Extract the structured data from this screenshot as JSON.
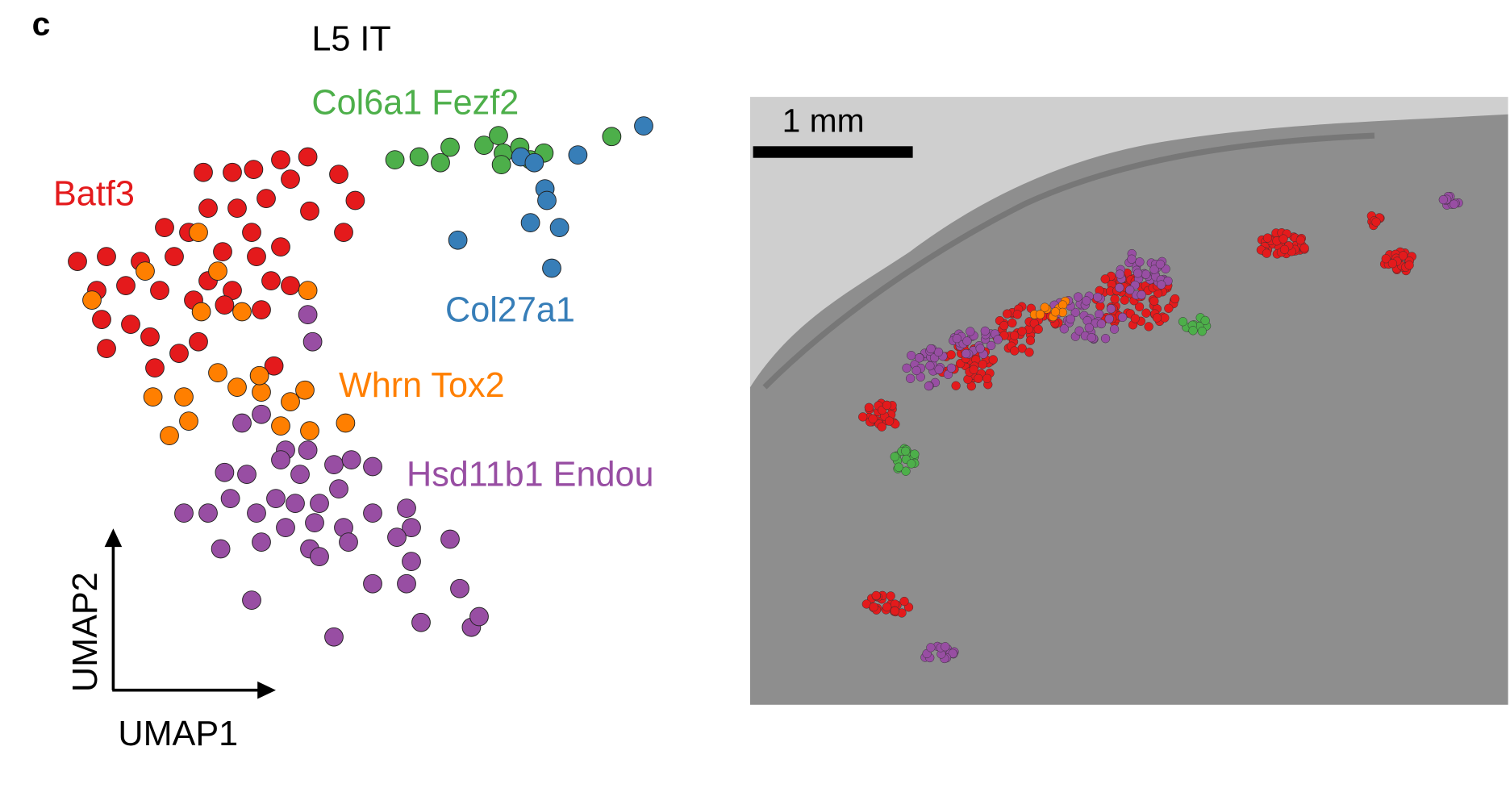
{
  "panel_label": "c",
  "chart_data": {
    "type": "scatter",
    "title": "L5 IT",
    "x_label": "UMAP1",
    "y_label": "UMAP2",
    "xlim": [
      0,
      62
    ],
    "ylim": [
      0,
      55
    ],
    "series": [
      {
        "name": "Batf3",
        "color": "#e41a1c",
        "x": [
          15.0,
          18.0,
          20.2,
          23.0,
          25.8,
          29.0,
          30.7,
          24.0,
          15.5,
          18.5,
          21.5,
          26.0,
          29.5,
          11.0,
          13.5,
          17.0,
          20.0,
          23.0,
          2.0,
          5.0,
          8.5,
          12.0,
          15.5,
          20.5,
          24.0,
          4.0,
          7.0,
          10.5,
          14.0,
          18.0,
          22.0,
          4.5,
          7.5,
          9.5,
          14.5,
          5.0,
          10.0,
          12.5,
          17.2,
          21.0,
          22.3
        ],
        "values": [
          49.2,
          49.2,
          49.5,
          50.5,
          50.8,
          49.0,
          46.3,
          48.5,
          45.5,
          45.5,
          46.5,
          45.2,
          43.0,
          43.5,
          43.0,
          41.0,
          43.0,
          41.5,
          40.0,
          40.5,
          40.0,
          40.5,
          38.0,
          40.5,
          37.5,
          37.0,
          37.5,
          37.0,
          36.0,
          37.0,
          38.0,
          34.0,
          33.5,
          32.2,
          31.7,
          31.0,
          29.0,
          30.5,
          35.5,
          35.0,
          29.2
        ]
      },
      {
        "name": "Whrn Tox2",
        "color": "#ff7f00",
        "x": [
          14.5,
          9.0,
          16.5,
          25.8,
          3.5,
          14.8,
          19.0,
          16.5,
          18.5,
          21.0,
          24.0,
          25.5,
          9.8,
          13.0,
          13.5,
          11.5,
          23.0,
          26.0,
          29.7,
          20.8
        ],
        "values": [
          43.0,
          39.0,
          39.0,
          37.0,
          36.0,
          34.8,
          34.8,
          28.5,
          27.0,
          26.5,
          25.5,
          26.7,
          26.0,
          26.0,
          23.5,
          22.0,
          23.0,
          22.5,
          23.3,
          28.2
        ]
      },
      {
        "name": "Hsd11b1 Endou",
        "color": "#984ea3",
        "x": [
          25.8,
          26.3,
          19.0,
          21.0,
          23.5,
          25.8,
          17.2,
          19.5,
          23.0,
          25.0,
          28.5,
          30.3,
          32.5,
          17.8,
          22.5,
          24.5,
          27.0,
          29.0,
          13.0,
          15.5,
          20.5,
          23.5,
          26.5,
          29.5,
          32.5,
          36.0,
          36.5,
          35.0,
          40.5,
          16.8,
          21.0,
          26.0,
          27.0,
          30.0,
          36.5,
          32.5,
          36.0,
          41.5,
          20.0,
          37.5,
          42.7,
          43.5,
          28.5
        ],
        "values": [
          34.5,
          31.7,
          23.3,
          24.2,
          20.5,
          20.5,
          18.2,
          18.0,
          19.5,
          18.0,
          19.0,
          19.5,
          18.8,
          15.5,
          15.5,
          15.0,
          15.0,
          16.5,
          14.0,
          14.0,
          14.0,
          12.5,
          13.0,
          12.5,
          14.0,
          14.5,
          12.5,
          11.5,
          11.3,
          10.3,
          11.0,
          10.3,
          9.5,
          11.0,
          9.0,
          6.7,
          6.7,
          6.2,
          5.0,
          2.7,
          2.2,
          3.3,
          1.2
        ]
      },
      {
        "name": "Col6a1 Fezf2",
        "color": "#4daf4a",
        "x": [
          34.8,
          37.3,
          39.5,
          40.5,
          44.0,
          45.5,
          46.0,
          47.7,
          48.8,
          50.2,
          57.2,
          45.8
        ],
        "values": [
          50.5,
          50.8,
          50.2,
          51.8,
          52.0,
          53.0,
          51.2,
          51.8,
          50.5,
          51.2,
          52.9,
          50.0
        ]
      },
      {
        "name": "Col27a1",
        "color": "#377eb8",
        "x": [
          47.8,
          49.2,
          53.7,
          60.5,
          50.3,
          50.5,
          48.8,
          51.8,
          41.3,
          51.0
        ],
        "values": [
          50.8,
          50.2,
          51.0,
          54.0,
          47.5,
          46.3,
          44.0,
          43.5,
          42.2,
          39.3
        ]
      }
    ]
  },
  "image": {
    "scale_bar": "1 mm"
  }
}
